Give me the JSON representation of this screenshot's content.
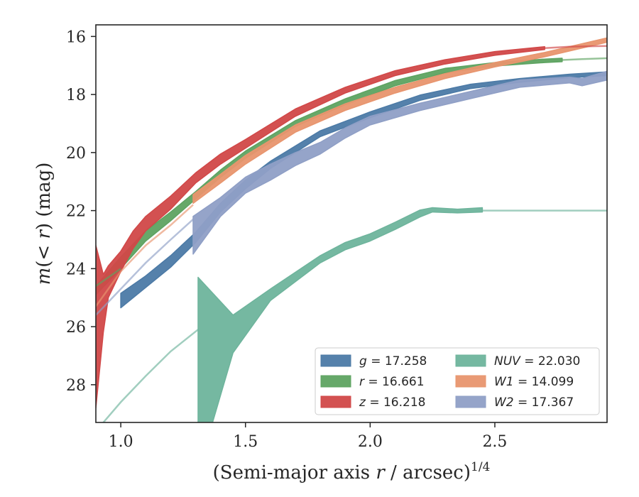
{
  "chart_data": {
    "type": "area",
    "xlabel": "(Semi-major axis r / arcsec)",
    "xlabel_parts": {
      "pre": "(Semi-major axis ",
      "var": "r",
      "post": " / arcsec)",
      "sup": "1/4"
    },
    "ylabel": "m(< r) (mag)",
    "ylabel_parts": {
      "m": "m",
      "open": "(",
      "lt": "< ",
      "r": "r",
      "close": ") (mag)"
    },
    "xlim": [
      0.9,
      2.95
    ],
    "ylim": [
      29.3,
      15.6
    ],
    "y_inverted": true,
    "xticks": [
      "1.0",
      "1.5",
      "2.0",
      "2.5"
    ],
    "yticks": [
      "16",
      "18",
      "20",
      "22",
      "24",
      "26",
      "28"
    ],
    "grid": false,
    "legend_position": "lower right",
    "series": [
      {
        "name": "g = 17.258",
        "legend": {
          "var": "g",
          "value": "= 17.258"
        },
        "color": "#4c7aa6",
        "points": [
          [
            1.0,
            25.35,
            24.85
          ],
          [
            1.1,
            24.65,
            24.25
          ],
          [
            1.2,
            23.95,
            23.55
          ],
          [
            1.3,
            23.1,
            22.75
          ],
          [
            1.4,
            22.05,
            21.75
          ],
          [
            1.5,
            21.25,
            20.95
          ],
          [
            1.6,
            20.55,
            20.3
          ],
          [
            1.8,
            19.45,
            19.25
          ],
          [
            2.0,
            18.8,
            18.6
          ],
          [
            2.2,
            18.2,
            18.02
          ],
          [
            2.4,
            17.8,
            17.65
          ],
          [
            2.6,
            17.58,
            17.45
          ],
          [
            2.8,
            17.42,
            17.3
          ],
          [
            2.95,
            17.35,
            17.22
          ]
        ]
      },
      {
        "name": "r = 16.661",
        "legend": {
          "var": "r",
          "value": "= 16.661"
        },
        "color": "#5ea361",
        "points": [
          [
            0.9,
            24.9,
            24.6
          ],
          [
            1.0,
            24.0,
            23.6
          ],
          [
            1.1,
            23.05,
            22.7
          ],
          [
            1.2,
            22.35,
            22.05
          ],
          [
            1.3,
            21.6,
            21.35
          ],
          [
            1.4,
            20.85,
            20.6
          ],
          [
            1.5,
            20.2,
            19.95
          ],
          [
            1.7,
            19.1,
            18.9
          ],
          [
            1.9,
            18.35,
            18.15
          ],
          [
            2.1,
            17.7,
            17.52
          ],
          [
            2.3,
            17.25,
            17.1
          ],
          [
            2.5,
            17.02,
            16.9
          ],
          [
            2.7,
            16.9,
            16.78
          ],
          [
            2.77,
            16.87,
            16.75
          ]
        ]
      },
      {
        "name": "z = 16.218",
        "legend": {
          "var": "z",
          "value": "= 16.218"
        },
        "color": "#d14848",
        "points": [
          [
            0.9,
            28.8,
            23.2
          ],
          [
            0.93,
            26.2,
            24.2
          ],
          [
            0.95,
            25.0,
            23.9
          ],
          [
            1.0,
            24.1,
            23.4
          ],
          [
            1.05,
            23.3,
            22.7
          ],
          [
            1.1,
            22.7,
            22.2
          ],
          [
            1.2,
            21.95,
            21.5
          ],
          [
            1.3,
            21.05,
            20.7
          ],
          [
            1.4,
            20.4,
            20.05
          ],
          [
            1.5,
            19.85,
            19.55
          ],
          [
            1.7,
            18.75,
            18.5
          ],
          [
            1.9,
            17.95,
            17.75
          ],
          [
            2.1,
            17.35,
            17.18
          ],
          [
            2.3,
            16.95,
            16.8
          ],
          [
            2.5,
            16.65,
            16.52
          ],
          [
            2.7,
            16.45,
            16.35
          ]
        ]
      },
      {
        "name": "NUV = 22.030",
        "legend": {
          "var": "NUV",
          "value": "= 22.030"
        },
        "color": "#6eb49c",
        "points": [
          [
            1.31,
            31.0,
            24.3
          ],
          [
            1.45,
            26.9,
            25.6
          ],
          [
            1.6,
            25.1,
            24.7
          ],
          [
            1.8,
            23.8,
            23.55
          ],
          [
            1.9,
            23.35,
            23.1
          ],
          [
            2.0,
            23.05,
            22.8
          ],
          [
            2.1,
            22.65,
            22.4
          ],
          [
            2.2,
            22.22,
            21.98
          ],
          [
            2.25,
            22.05,
            21.9
          ],
          [
            2.35,
            22.08,
            21.95
          ],
          [
            2.45,
            22.05,
            21.9
          ]
        ]
      },
      {
        "name": "W1 = 14.099",
        "legend": {
          "var": "W1",
          "value": "= 14.099"
        },
        "color": "#e8956e",
        "points": [
          [
            1.29,
            21.75,
            21.45
          ],
          [
            1.4,
            21.05,
            20.75
          ],
          [
            1.5,
            20.4,
            20.1
          ],
          [
            1.7,
            19.3,
            19.05
          ],
          [
            1.9,
            18.55,
            18.32
          ],
          [
            2.1,
            17.95,
            17.75
          ],
          [
            2.3,
            17.45,
            17.28
          ],
          [
            2.5,
            17.05,
            16.9
          ],
          [
            2.7,
            16.7,
            16.55
          ],
          [
            2.95,
            16.2,
            16.05
          ]
        ]
      },
      {
        "name": "W2 = 17.367",
        "legend": {
          "var": "W2",
          "value": "= 17.367"
        },
        "color": "#8f9fc6",
        "points": [
          [
            1.29,
            23.5,
            22.2
          ],
          [
            1.4,
            22.2,
            21.55
          ],
          [
            1.5,
            21.4,
            20.85
          ],
          [
            1.6,
            20.95,
            20.4
          ],
          [
            1.7,
            20.45,
            20.0
          ],
          [
            1.8,
            20.05,
            19.65
          ],
          [
            1.9,
            19.5,
            19.15
          ],
          [
            2.0,
            19.05,
            18.75
          ],
          [
            2.2,
            18.55,
            18.3
          ],
          [
            2.4,
            18.15,
            17.9
          ],
          [
            2.6,
            17.75,
            17.5
          ],
          [
            2.8,
            17.6,
            17.4
          ],
          [
            2.85,
            17.7,
            17.45
          ],
          [
            2.95,
            17.5,
            17.2
          ]
        ]
      }
    ],
    "fit_lines": [
      {
        "color": "#e8956e",
        "points": [
          [
            0.9,
            25.3
          ],
          [
            1.0,
            24.1
          ],
          [
            1.1,
            23.2
          ],
          [
            1.2,
            22.5
          ],
          [
            1.29,
            21.8
          ]
        ]
      },
      {
        "color": "#8f9fc6",
        "points": [
          [
            0.9,
            25.6
          ],
          [
            1.0,
            24.7
          ],
          [
            1.1,
            23.8
          ],
          [
            1.2,
            23.0
          ],
          [
            1.29,
            22.3
          ]
        ]
      },
      {
        "color": "#5ea361",
        "points": [
          [
            0.9,
            24.6
          ],
          [
            1.0,
            24.0
          ]
        ]
      },
      {
        "color": "#5ea361",
        "points": [
          [
            2.77,
            16.81
          ],
          [
            2.85,
            16.78
          ],
          [
            2.95,
            16.75
          ]
        ]
      },
      {
        "color": "#d14848",
        "points": [
          [
            2.7,
            16.4
          ],
          [
            2.8,
            16.35
          ],
          [
            2.95,
            16.33
          ]
        ]
      },
      {
        "color": "#6eb49c",
        "points": [
          [
            0.9,
            29.6
          ],
          [
            1.0,
            28.6
          ],
          [
            1.1,
            27.7
          ],
          [
            1.2,
            26.85
          ],
          [
            1.31,
            26.1
          ]
        ]
      },
      {
        "color": "#6eb49c",
        "points": [
          [
            2.45,
            22.0
          ],
          [
            2.95,
            22.0
          ]
        ]
      }
    ]
  }
}
